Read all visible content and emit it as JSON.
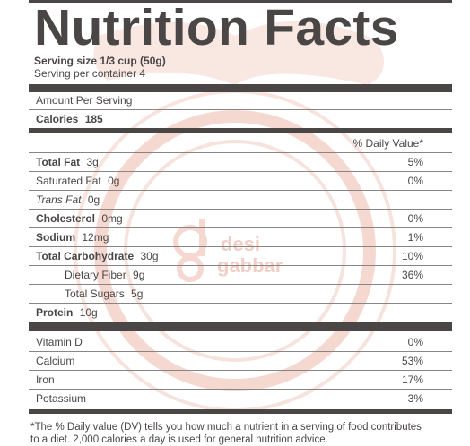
{
  "header": {
    "title": "Nutrition Facts"
  },
  "serving": {
    "size": "Serving size 1/3 cup (50g)",
    "per_container": "Serving per container 4"
  },
  "amount_label": "Amount Per Serving",
  "calories": {
    "label": "Calories",
    "value": "185"
  },
  "dv_header": "% Daily Value*",
  "nutrients": [
    {
      "name": "Total Fat",
      "amount": "3g",
      "dv": "5%"
    },
    {
      "name": "Saturated Fat",
      "amount": "0g",
      "dv": "0%"
    },
    {
      "name": "Trans Fat",
      "amount": "0g",
      "dv": ""
    },
    {
      "name": "Cholesterol",
      "amount": "0mg",
      "dv": "0%"
    },
    {
      "name": "Sodium",
      "amount": "12mg",
      "dv": "1%"
    },
    {
      "name": "Total Carbohydrate",
      "amount": "30g",
      "dv": "10%"
    },
    {
      "name": "Dietary Fiber",
      "amount": "9g",
      "dv": "36%"
    },
    {
      "name": "Total Sugars",
      "amount": "5g",
      "dv": ""
    },
    {
      "name": "Protein",
      "amount": "10g",
      "dv": ""
    }
  ],
  "vitamins": [
    {
      "name": "Vitamin D",
      "dv": "0%"
    },
    {
      "name": "Calcium",
      "dv": "53%"
    },
    {
      "name": "Iron",
      "dv": "17%"
    },
    {
      "name": "Potassium",
      "dv": "3%"
    }
  ],
  "footnote": "*The % Daily value (DV) tells you how much a nutrient in a serving of food contributes to a diet. 2,000 calories a day is used for general nutrition advice.",
  "watermark": {
    "text_line1": "desi",
    "text_line2": "gabbar",
    "color": "#f2c7bd"
  }
}
